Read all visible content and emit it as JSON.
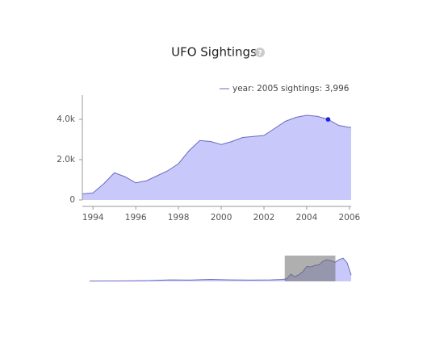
{
  "chart_data": {
    "type": "area",
    "title": "UFO Sightings",
    "x": [
      1993.5,
      1994,
      1994.5,
      1995,
      1995.5,
      1996,
      1996.5,
      1997,
      1997.5,
      1998,
      1998.5,
      1999,
      1999.5,
      2000,
      2000.5,
      2001,
      2001.5,
      2002,
      2002.5,
      2003,
      2003.5,
      2004,
      2004.5,
      2005,
      2005.5,
      2006,
      2006.08
    ],
    "values": [
      300,
      350,
      800,
      1350,
      1150,
      850,
      950,
      1200,
      1450,
      1800,
      2450,
      2950,
      2900,
      2750,
      2900,
      3100,
      3150,
      3200,
      3550,
      3900,
      4100,
      4200,
      4150,
      3996,
      3700,
      3600,
      3600
    ],
    "color": "#c8c8fa",
    "line_color": "#6a6ac4",
    "xlim": [
      1993.5,
      2006.08
    ],
    "xticks": [
      1994,
      1996,
      1998,
      2000,
      2002,
      2004,
      2006
    ],
    "ylim": [
      0,
      5200
    ],
    "yticks": [
      0,
      {
        "value": 2000,
        "label": "2.0k"
      },
      {
        "value": 4000,
        "label": "4.0k"
      }
    ],
    "tooltip": {
      "index": 23,
      "x_text": "year: 2005",
      "y_text": "sightings: 3,996"
    },
    "overview": {
      "x": [
        1945,
        1950,
        1955,
        1960,
        1965,
        1970,
        1975,
        1980,
        1985,
        1990,
        1993,
        1994,
        1995,
        1996,
        1997,
        1998,
        1999,
        2000,
        2001,
        2002,
        2003,
        2004,
        2005,
        2006,
        2007,
        2008,
        2009,
        2010
      ],
      "values": [
        50,
        80,
        100,
        150,
        300,
        250,
        400,
        300,
        250,
        300,
        400,
        500,
        1400,
        900,
        1300,
        1900,
        2900,
        2800,
        3100,
        3200,
        3900,
        4200,
        4000,
        3700,
        4200,
        4500,
        3600,
        1200
      ],
      "xlim": [
        1945,
        2010
      ],
      "ylim": [
        0,
        5000
      ],
      "brush": [
        1993.5,
        2006.08
      ]
    }
  }
}
